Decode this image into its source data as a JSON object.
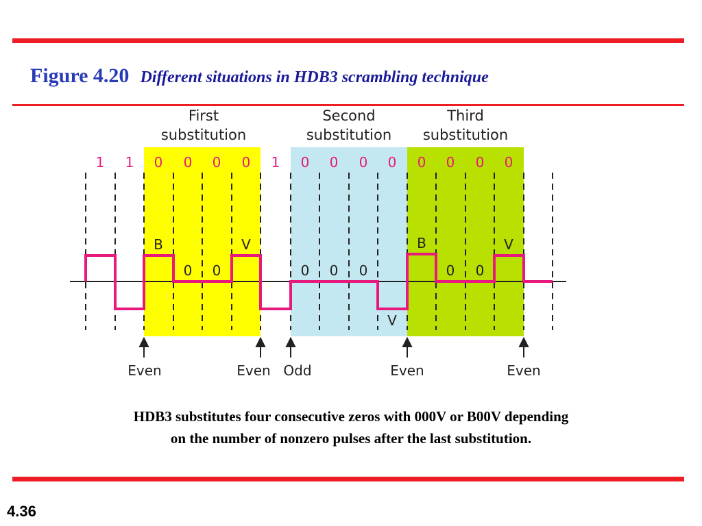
{
  "figure": {
    "number": "Figure 4.20",
    "caption": "Different situations in HDB3 scrambling technique"
  },
  "diagram": {
    "regions": [
      {
        "title_line1": "First",
        "title_line2": "substitution",
        "color": "#ffff00"
      },
      {
        "title_line1": "Second",
        "title_line2": "substitution",
        "color": "#c4e8f2"
      },
      {
        "title_line1": "Third",
        "title_line2": "substitution",
        "color": "#b8e000"
      }
    ],
    "bits": [
      "1",
      "1",
      "0",
      "0",
      "0",
      "0",
      "1",
      "0",
      "0",
      "0",
      "0",
      "0",
      "0",
      "0",
      "0"
    ],
    "pulse_labels": [
      "B",
      "0",
      "0",
      "V",
      "0",
      "0",
      "0",
      "V",
      "B",
      "0",
      "0",
      "V"
    ],
    "parity_labels": [
      "Even",
      "Even",
      "Odd",
      "Even",
      "Even"
    ],
    "colors": {
      "signal": "#e8197d",
      "bits": "#e8197d",
      "accent": "#ee1c25"
    }
  },
  "caption_lines": [
    "HDB3 substitutes four consecutive zeros with 000V or B00V depending",
    "on the number of nonzero pulses after the last substitution."
  ],
  "slide_number": "4.36"
}
